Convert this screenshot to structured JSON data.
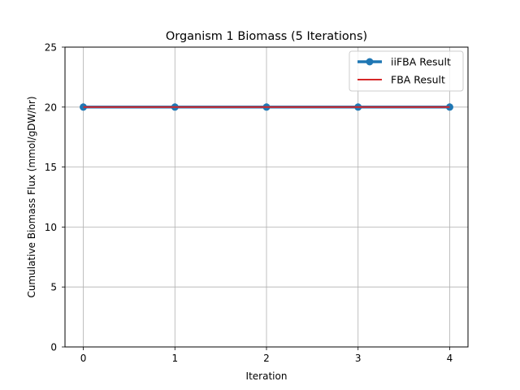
{
  "chart_data": {
    "type": "line",
    "title": "Organism 1 Biomass (5 Iterations)",
    "xlabel": "Iteration",
    "ylabel": "Cumulative Biomass Flux (mmol/gDW/hr)",
    "x": [
      0,
      1,
      2,
      3,
      4
    ],
    "xlim": [
      -0.2,
      4.2
    ],
    "ylim": [
      0,
      25
    ],
    "xticks": [
      0,
      1,
      2,
      3,
      4
    ],
    "yticks": [
      0,
      5,
      10,
      15,
      20,
      25
    ],
    "grid": true,
    "legend_position": "top-right",
    "series": [
      {
        "name": "iiFBA Result",
        "values": [
          20,
          20,
          20,
          20,
          20
        ],
        "color": "#1f77b4",
        "marker": "circle",
        "style": "solid-thick"
      },
      {
        "name": "FBA Result",
        "values": [
          20,
          20,
          20,
          20,
          20
        ],
        "color": "#d62728",
        "marker": "none",
        "style": "solid"
      }
    ]
  }
}
